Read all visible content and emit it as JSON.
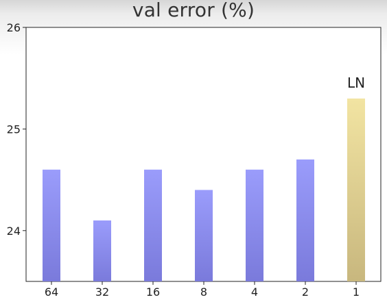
{
  "chart_data": {
    "type": "bar",
    "title": "val error (%)",
    "categories": [
      "64",
      "32",
      "16",
      "8",
      "4",
      "2",
      "1"
    ],
    "values": [
      24.6,
      24.1,
      24.6,
      24.4,
      24.6,
      24.7,
      25.3
    ],
    "ylim": [
      23.5,
      26.0
    ],
    "yticks": [
      "24",
      "25",
      "26"
    ],
    "bar_colors": [
      "#9a9cfb",
      "#9a9cfb",
      "#9a9cfb",
      "#9a9cfb",
      "#9a9cfb",
      "#9a9cfb",
      "#f2e4a2"
    ],
    "bar_bottom_colors": [
      "#7a7adb",
      "#7a7adb",
      "#7a7adb",
      "#7a7adb",
      "#7a7adb",
      "#7a7adb",
      "#c8b77e"
    ],
    "annotations": [
      {
        "category": "1",
        "text": "LN"
      }
    ],
    "grid": false
  }
}
